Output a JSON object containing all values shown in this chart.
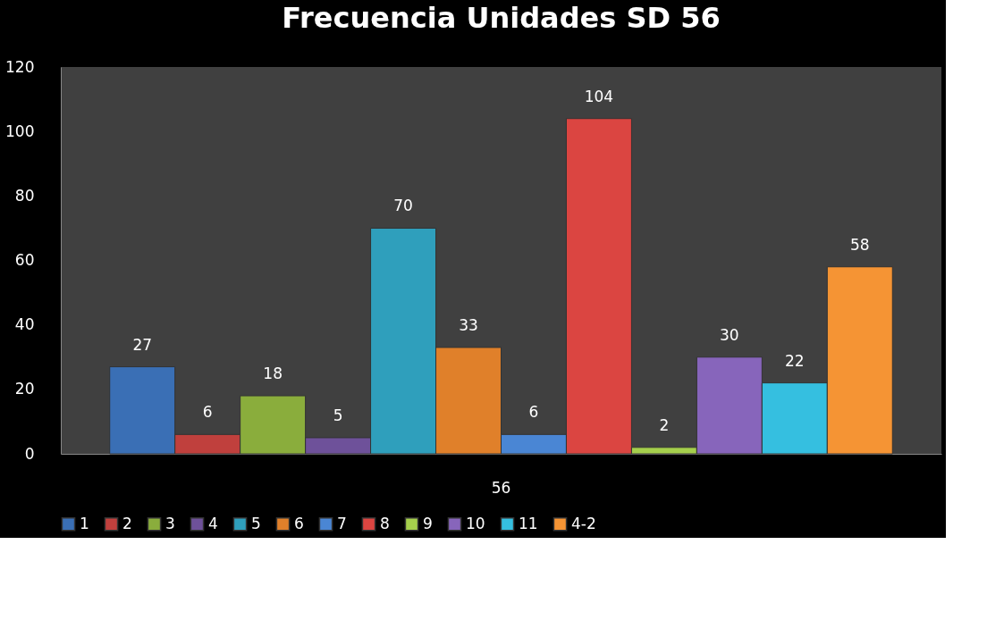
{
  "chart_data": {
    "type": "bar",
    "title": "Frecuencia Unidades SD  56",
    "categories": [
      "56"
    ],
    "series": [
      {
        "name": "1",
        "color": "#3a6fb5",
        "values": [
          27
        ]
      },
      {
        "name": "2",
        "color": "#c0403d",
        "values": [
          6
        ]
      },
      {
        "name": "3",
        "color": "#8aad3c",
        "values": [
          18
        ]
      },
      {
        "name": "4",
        "color": "#6e519a",
        "values": [
          5
        ]
      },
      {
        "name": "5",
        "color": "#2f9fbc",
        "values": [
          70
        ]
      },
      {
        "name": "6",
        "color": "#e0802a",
        "values": [
          33
        ]
      },
      {
        "name": "7",
        "color": "#4a86d4",
        "values": [
          6
        ]
      },
      {
        "name": "8",
        "color": "#db4541",
        "values": [
          104
        ]
      },
      {
        "name": "9",
        "color": "#a5cf4c",
        "values": [
          2
        ]
      },
      {
        "name": "10",
        "color": "#8765bb",
        "values": [
          30
        ]
      },
      {
        "name": "11",
        "color": "#35bfe0",
        "values": [
          22
        ]
      },
      {
        "name": "4-2",
        "color": "#f59434",
        "values": [
          58
        ]
      }
    ],
    "ylim": [
      0,
      120
    ],
    "yticks": [
      0,
      20,
      40,
      60,
      80,
      100,
      120
    ],
    "grid": false,
    "legend": "bottom",
    "data_labels": true
  }
}
